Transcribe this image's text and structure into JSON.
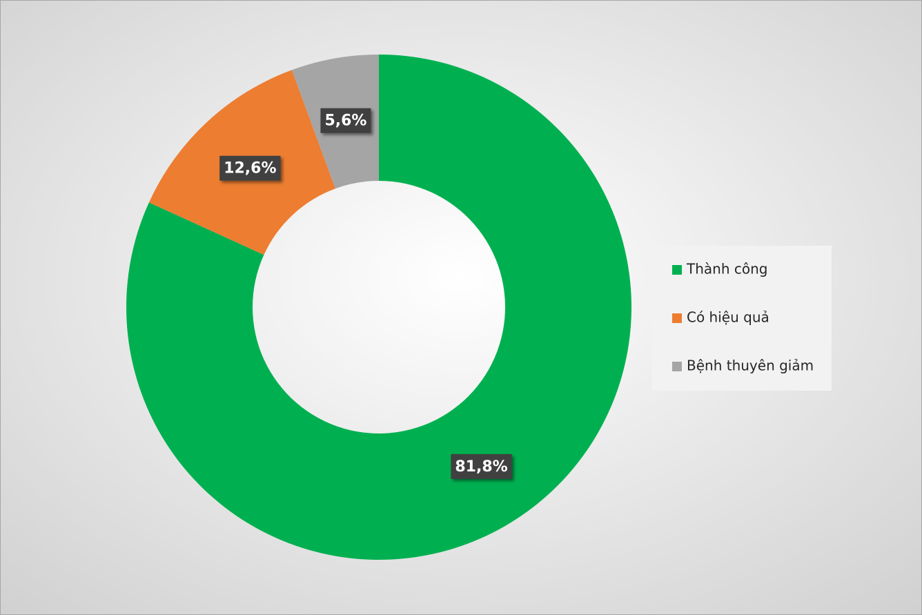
{
  "chart_data": {
    "type": "donut",
    "categories": [
      "Thành công",
      "Có hiệu quả",
      "Bệnh thuyên giảm"
    ],
    "values": [
      81.8,
      12.6,
      5.6
    ],
    "value_labels": [
      "81,8%",
      "12,6%",
      "5,6%"
    ],
    "colors": [
      "#00b050",
      "#ed7d31",
      "#a5a5a5"
    ],
    "legend": "right"
  }
}
